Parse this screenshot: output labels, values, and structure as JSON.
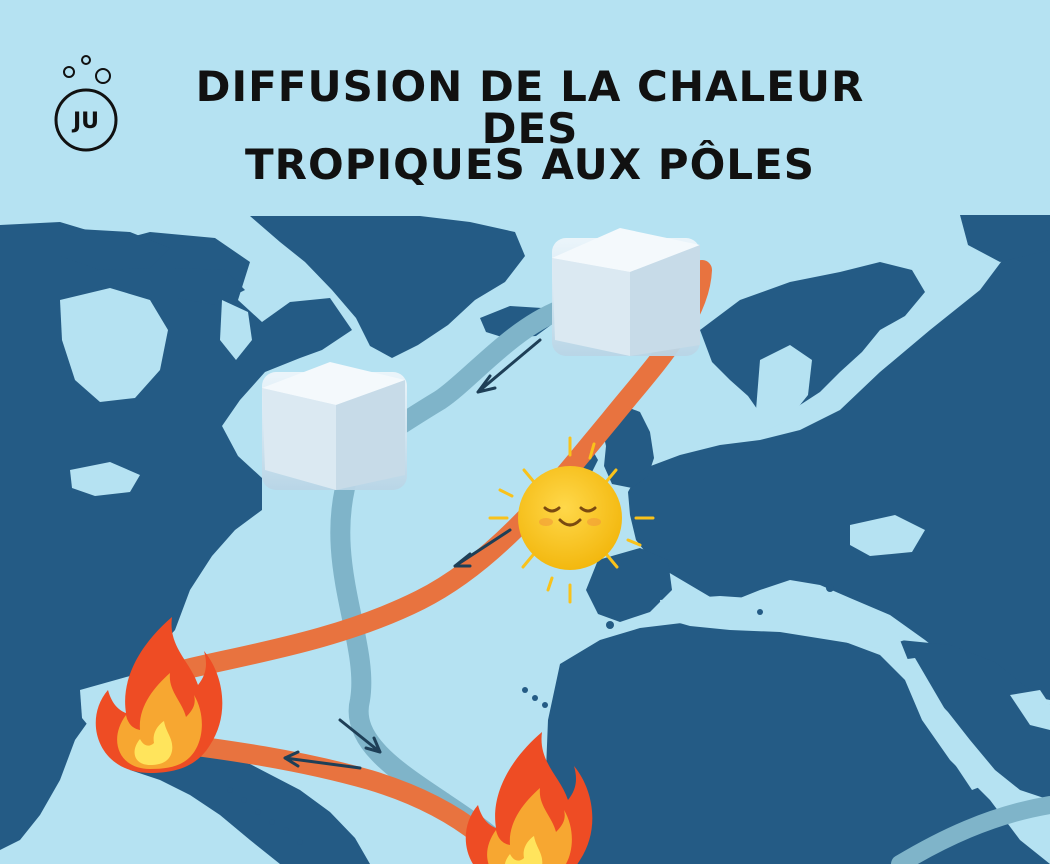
{
  "header": {
    "title_line_1": "DIFFUSION DE LA CHALEUR DES",
    "title_line_2": "TROPIQUES AUX PÔLES"
  },
  "logo": {
    "text": "JU"
  },
  "colors": {
    "sky": "#b5e2f2",
    "ocean": "#b5e2f2",
    "land": "#245b85",
    "warm_current": "#e8733f",
    "cold_current": "#7fb4c9",
    "sun": "#f9c21b",
    "fire_outer": "#ee4c24",
    "fire_inner": "#f7a731",
    "ice": "#d7e7f1"
  },
  "icons": [
    "logo-icon",
    "ice-cube-icon",
    "sun-icon",
    "fire-icon",
    "arrow-icon"
  ]
}
